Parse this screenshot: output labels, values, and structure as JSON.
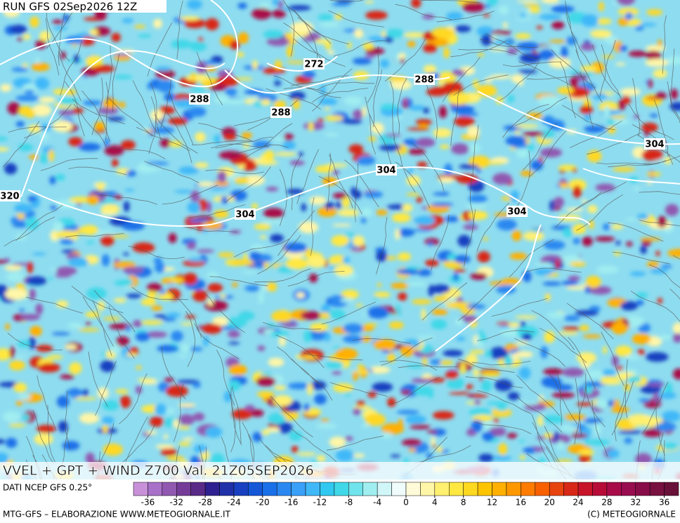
{
  "run_label": "RUN GFS 02Sep2026 12Z",
  "map_title": "VVEL + GPT + WIND Z700 Val. 21Z05SEP2026",
  "contour_labels": [
    272,
    288,
    288,
    288,
    304,
    304,
    304,
    304,
    320
  ],
  "source_label": "DATI NCEP GFS 0.25°",
  "footer_left": "MTG-GFS – ELABORAZIONE WWW.METEOGIORNALE.IT",
  "footer_right": "(C) METEOGIORNALE",
  "colorbar": {
    "lim": [
      -38,
      38
    ],
    "ticks": [
      -36,
      -32,
      -28,
      -24,
      -20,
      -16,
      -12,
      -8,
      -4,
      0,
      4,
      8,
      12,
      16,
      20,
      24,
      28,
      32,
      36
    ],
    "colors": [
      "#c890d8",
      "#a870c8",
      "#9058b0",
      "#743c98",
      "#5a2a88",
      "#2e2090",
      "#2030a8",
      "#1840c0",
      "#1458d8",
      "#1a70e8",
      "#2a88f0",
      "#3aa0f8",
      "#40b8f8",
      "#30c8f0",
      "#40d8e8",
      "#70e4ec",
      "#a0eef0",
      "#d0f6f8",
      "#f0fcfc",
      "#fffbd8",
      "#fff6a8",
      "#fff070",
      "#ffe840",
      "#ffd820",
      "#ffc400",
      "#ffb000",
      "#ff9800",
      "#ff7c00",
      "#f86000",
      "#e84410",
      "#d82818",
      "#c81428",
      "#b80c38",
      "#a80c48",
      "#980c50",
      "#880c48",
      "#781040",
      "#681038"
    ]
  }
}
